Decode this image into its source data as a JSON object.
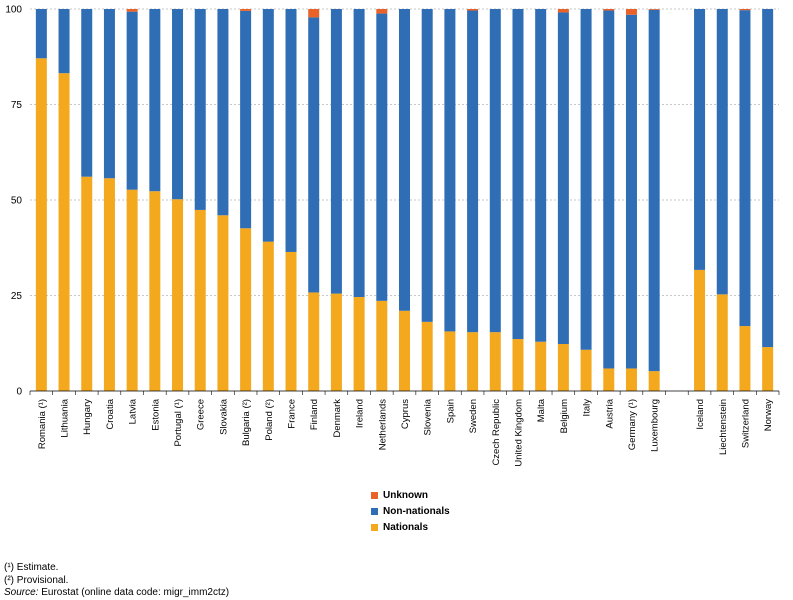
{
  "chart_data": {
    "type": "bar",
    "stacked": true,
    "ylim": [
      0,
      100
    ],
    "yticks": [
      0,
      25,
      50,
      75,
      100
    ],
    "grid": true,
    "legend_position": "bottom-center",
    "categories": [
      "Romania (¹)",
      "Lithuania",
      "Hungary",
      "Croatia",
      "Latvia",
      "Estonia",
      "Portugal (¹)",
      "Greece",
      "Slovakia",
      "Bulgaria (²)",
      "Poland (²)",
      "France",
      "Finland",
      "Denmark",
      "Ireland",
      "Netherlands",
      "Cyprus",
      "Slovenia",
      "Spain",
      "Sweden",
      "Czech Republic",
      "United Kingdom",
      "Malta",
      "Belgium",
      "Italy",
      "Austria",
      "Germany (¹)",
      "Luxembourg",
      "",
      "Iceland",
      "Liechtenstein",
      "Switzerland",
      "Norway"
    ],
    "series": [
      {
        "name": "Nationals",
        "color": "#F4A81E",
        "values": [
          87.1,
          83.2,
          56.1,
          55.7,
          52.7,
          52.3,
          50.2,
          47.4,
          46.0,
          42.6,
          39.1,
          36.4,
          25.8,
          25.5,
          24.6,
          23.6,
          21.0,
          18.1,
          15.6,
          15.4,
          15.4,
          13.6,
          12.9,
          12.3,
          10.8,
          5.9,
          5.9,
          5.2,
          null,
          31.7,
          25.3,
          17.0,
          11.5
        ]
      },
      {
        "name": "Non-nationals",
        "color": "#2F6DB5",
        "values": [
          12.9,
          16.8,
          43.9,
          44.3,
          46.6,
          47.7,
          49.8,
          52.6,
          54.0,
          56.9,
          60.9,
          63.6,
          72.0,
          74.5,
          75.4,
          75.2,
          79.0,
          81.9,
          84.4,
          84.2,
          84.6,
          86.4,
          87.1,
          86.8,
          89.2,
          93.7,
          92.6,
          94.6,
          null,
          68.3,
          74.7,
          82.7,
          88.5
        ]
      },
      {
        "name": "Unknown",
        "color": "#E8622A",
        "values": [
          0,
          0,
          0,
          0,
          0.7,
          0,
          0,
          0,
          0,
          0.5,
          0,
          0,
          2.2,
          0,
          0,
          1.2,
          0,
          0,
          0,
          0.4,
          0,
          0,
          0,
          0.9,
          0,
          0.4,
          1.5,
          0.2,
          null,
          0,
          0,
          0.3,
          0
        ]
      }
    ],
    "legend_order": [
      "Unknown",
      "Non-nationals",
      "Nationals"
    ]
  },
  "footnotes": {
    "estimate": "(¹) Estimate.",
    "provisional": "(²) Provisional.",
    "source_label": "Source:",
    "source_text": " Eurostat (online data code: migr_imm2ctz)"
  }
}
